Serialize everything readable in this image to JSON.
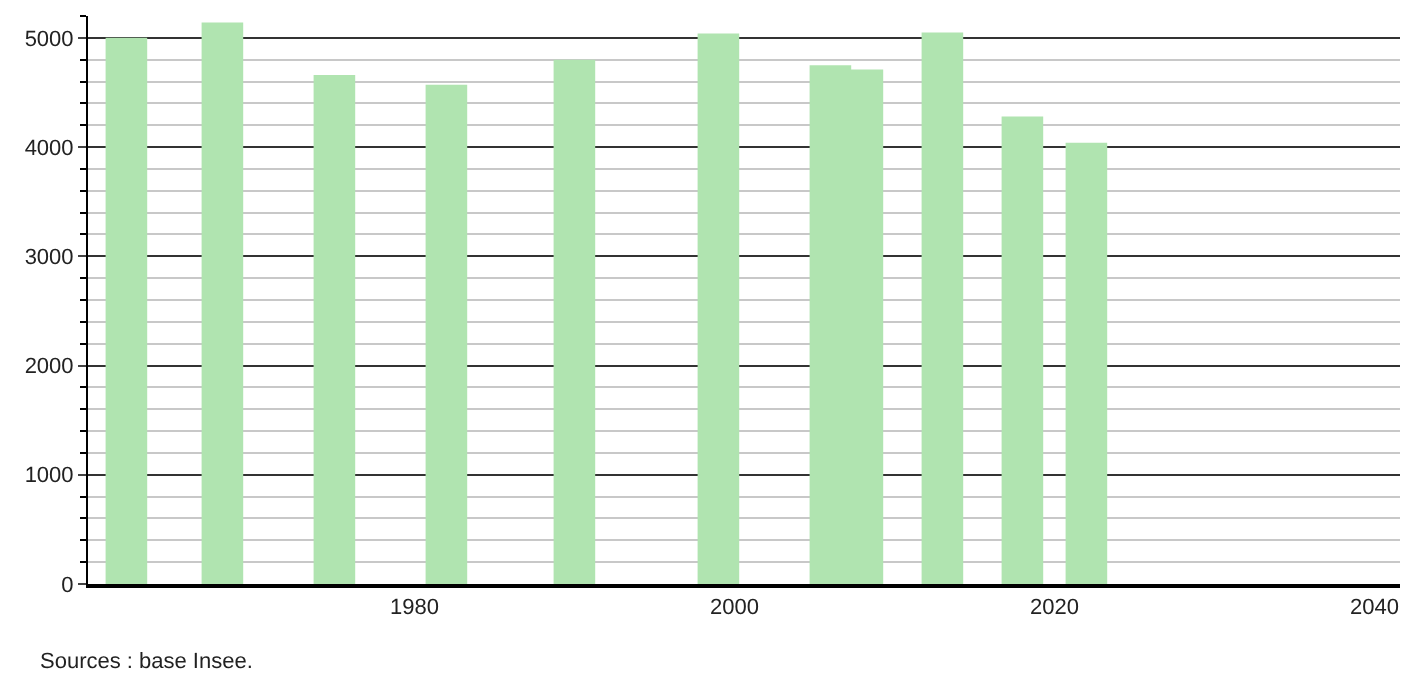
{
  "chart_data": {
    "type": "bar",
    "x": [
      1962,
      1968,
      1975,
      1982,
      1990,
      1999,
      2006,
      2008,
      2013,
      2018,
      2022
    ],
    "values": [
      5000,
      5140,
      4660,
      4570,
      4800,
      5040,
      4750,
      4710,
      5050,
      4280,
      4040
    ],
    "color": "#b0e4b0",
    "xlim": [
      1959.6,
      2041.6
    ],
    "xticks": [
      1980,
      2000,
      2020,
      2040
    ],
    "ylim": [
      0,
      5200
    ],
    "yticks": [
      0,
      1000,
      2000,
      3000,
      4000,
      5000
    ],
    "grid": "y",
    "annotations": [
      "Sources : base Insee."
    ]
  }
}
